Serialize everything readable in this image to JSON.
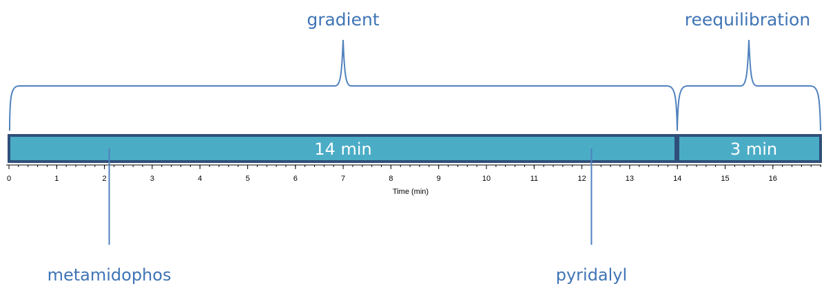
{
  "phases": [
    {
      "id": "gradient",
      "label": "gradient",
      "duration_label": "14 min",
      "start": 0,
      "end": 14
    },
    {
      "id": "reequilibration",
      "label": "reequilibration",
      "duration_label": "3 min",
      "start": 14,
      "end": 17
    }
  ],
  "axis": {
    "title": "Time (min)",
    "min": 0,
    "max": 17,
    "tick_labels": [
      "0",
      "1",
      "2",
      "3",
      "4",
      "5",
      "6",
      "7",
      "8",
      "9",
      "10",
      "11",
      "12",
      "13",
      "14",
      "15",
      "16"
    ]
  },
  "markers": [
    {
      "id": "metamidophos",
      "label": "metamidophos",
      "time": 2.1
    },
    {
      "id": "pyridalyl",
      "label": "pyridalyl",
      "time": 12.2
    }
  ],
  "colors": {
    "bar_fill": "#4bacc6",
    "bar_border": "#2f4e7a",
    "label_text": "#3f74b5",
    "brace": "#4f81bd",
    "axis": "#000000"
  }
}
